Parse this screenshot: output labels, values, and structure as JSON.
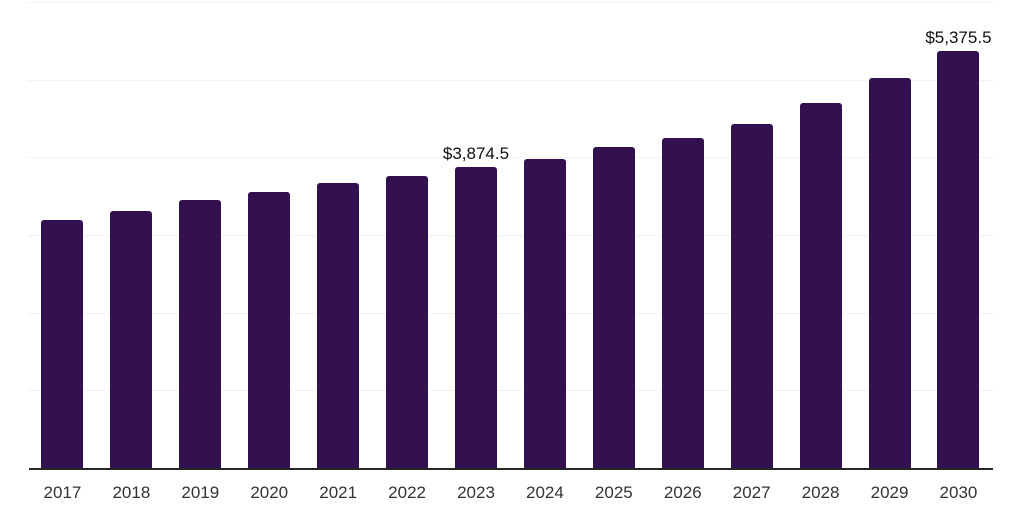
{
  "chart_data": {
    "type": "bar",
    "title": "",
    "subtitle": "",
    "xlabel": "",
    "ylabel": "",
    "categories": [
      "2017",
      "2018",
      "2019",
      "2020",
      "2021",
      "2022",
      "2023",
      "2024",
      "2025",
      "2026",
      "2027",
      "2028",
      "2029",
      "2030"
    ],
    "values": [
      3190,
      3315,
      3450,
      3560,
      3665,
      3765,
      3874.5,
      3980,
      4130,
      4255,
      4430,
      4695,
      5020,
      5375.5
    ],
    "labeled_points": [
      {
        "category": "2023",
        "label": "$3,874.5"
      },
      {
        "category": "2030",
        "label": "$5,375.5"
      }
    ],
    "ylim": [
      0,
      6000
    ],
    "grid_interval": 1000,
    "grid": "horizontal-only",
    "legend": "none",
    "y_axis_ticks_visible": false,
    "colors": {
      "bar": "#331150",
      "axis_line": "#262626",
      "gridline": "#f2f2f2",
      "value_label": "#111111",
      "tick_label": "#333333",
      "background": "#ffffff"
    }
  }
}
